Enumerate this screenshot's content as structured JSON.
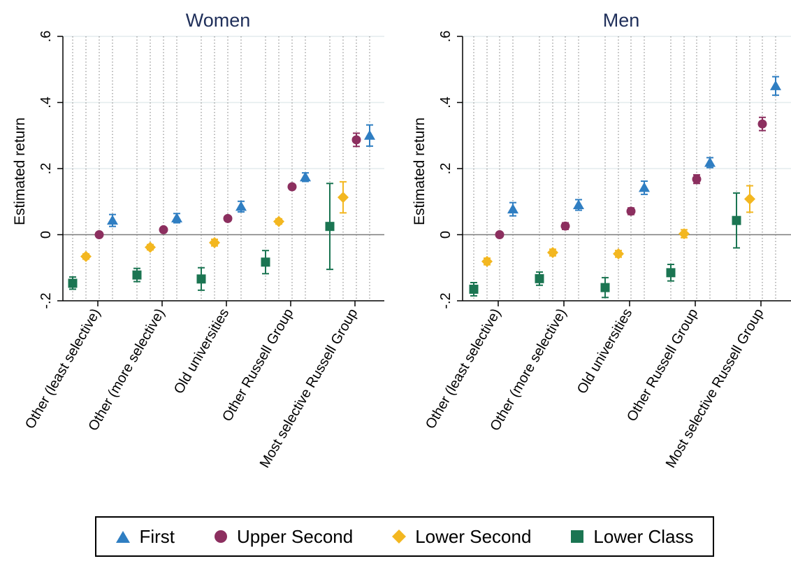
{
  "chart_data": [
    {
      "type": "scatter",
      "title": "Women",
      "ylabel": "Estimated return",
      "ylim": [
        -0.2,
        0.6
      ],
      "yticks": [
        -0.2,
        0,
        0.2,
        0.4,
        0.6
      ],
      "ytick_labels": [
        "-.2",
        "0",
        ".2",
        ".4",
        ".6"
      ],
      "categories": [
        "Other (least selective)",
        "Other (more selective)",
        "Old universities",
        "Other Russell Group",
        "Most selective Russell Group"
      ],
      "series": [
        {
          "name": "Lower Class",
          "values": [
            -0.147,
            -0.122,
            -0.134,
            -0.083,
            0.025
          ],
          "ci_low": [
            -0.165,
            -0.142,
            -0.168,
            -0.118,
            -0.105
          ],
          "ci_high": [
            -0.128,
            -0.102,
            -0.1,
            -0.048,
            0.155
          ]
        },
        {
          "name": "Lower Second",
          "values": [
            -0.066,
            -0.038,
            -0.024,
            0.04,
            0.113
          ],
          "ci_low": [
            -0.074,
            -0.046,
            -0.034,
            0.032,
            0.066
          ],
          "ci_high": [
            -0.058,
            -0.03,
            -0.014,
            0.048,
            0.16
          ]
        },
        {
          "name": "Upper Second",
          "values": [
            0.0,
            0.015,
            0.049,
            0.145,
            0.287
          ],
          "ci_low": [
            0.0,
            0.009,
            0.042,
            0.138,
            0.267
          ],
          "ci_high": [
            0.0,
            0.021,
            0.056,
            0.152,
            0.307
          ]
        },
        {
          "name": "First",
          "values": [
            0.043,
            0.05,
            0.085,
            0.174,
            0.3
          ],
          "ci_low": [
            0.025,
            0.036,
            0.069,
            0.161,
            0.268
          ],
          "ci_high": [
            0.061,
            0.064,
            0.101,
            0.187,
            0.332
          ]
        }
      ]
    },
    {
      "type": "scatter",
      "title": "Men",
      "ylabel": "Estimated return",
      "ylim": [
        -0.2,
        0.6
      ],
      "yticks": [
        -0.2,
        0,
        0.2,
        0.4,
        0.6
      ],
      "ytick_labels": [
        "-.2",
        "0",
        ".2",
        ".4",
        ".6"
      ],
      "categories": [
        "Other (least selective)",
        "Other (more selective)",
        "Old universities",
        "Other Russell Group",
        "Most selective Russell Group"
      ],
      "series": [
        {
          "name": "Lower Class",
          "values": [
            -0.165,
            -0.133,
            -0.16,
            -0.115,
            0.043
          ],
          "ci_low": [
            -0.185,
            -0.153,
            -0.19,
            -0.14,
            -0.04
          ],
          "ci_high": [
            -0.145,
            -0.113,
            -0.13,
            -0.09,
            0.126
          ]
        },
        {
          "name": "Lower Second",
          "values": [
            -0.081,
            -0.054,
            -0.058,
            0.003,
            0.108
          ],
          "ci_low": [
            -0.091,
            -0.064,
            -0.068,
            -0.009,
            0.068
          ],
          "ci_high": [
            -0.071,
            -0.044,
            -0.048,
            0.015,
            0.148
          ]
        },
        {
          "name": "Upper Second",
          "values": [
            0.0,
            0.026,
            0.071,
            0.168,
            0.335
          ],
          "ci_low": [
            0.0,
            0.016,
            0.061,
            0.155,
            0.315
          ],
          "ci_high": [
            0.0,
            0.036,
            0.081,
            0.181,
            0.355
          ]
        },
        {
          "name": "First",
          "values": [
            0.077,
            0.09,
            0.142,
            0.218,
            0.45
          ],
          "ci_low": [
            0.057,
            0.074,
            0.122,
            0.203,
            0.422
          ],
          "ci_high": [
            0.097,
            0.106,
            0.162,
            0.233,
            0.478
          ]
        }
      ]
    }
  ],
  "legend": [
    {
      "label": "First",
      "color": "#2f7ec2",
      "marker": "triangle"
    },
    {
      "label": "Upper Second",
      "color": "#8c2f5f",
      "marker": "circle"
    },
    {
      "label": "Lower Second",
      "color": "#f3b720",
      "marker": "diamond"
    },
    {
      "label": "Lower Class",
      "color": "#1b7552",
      "marker": "square"
    }
  ]
}
